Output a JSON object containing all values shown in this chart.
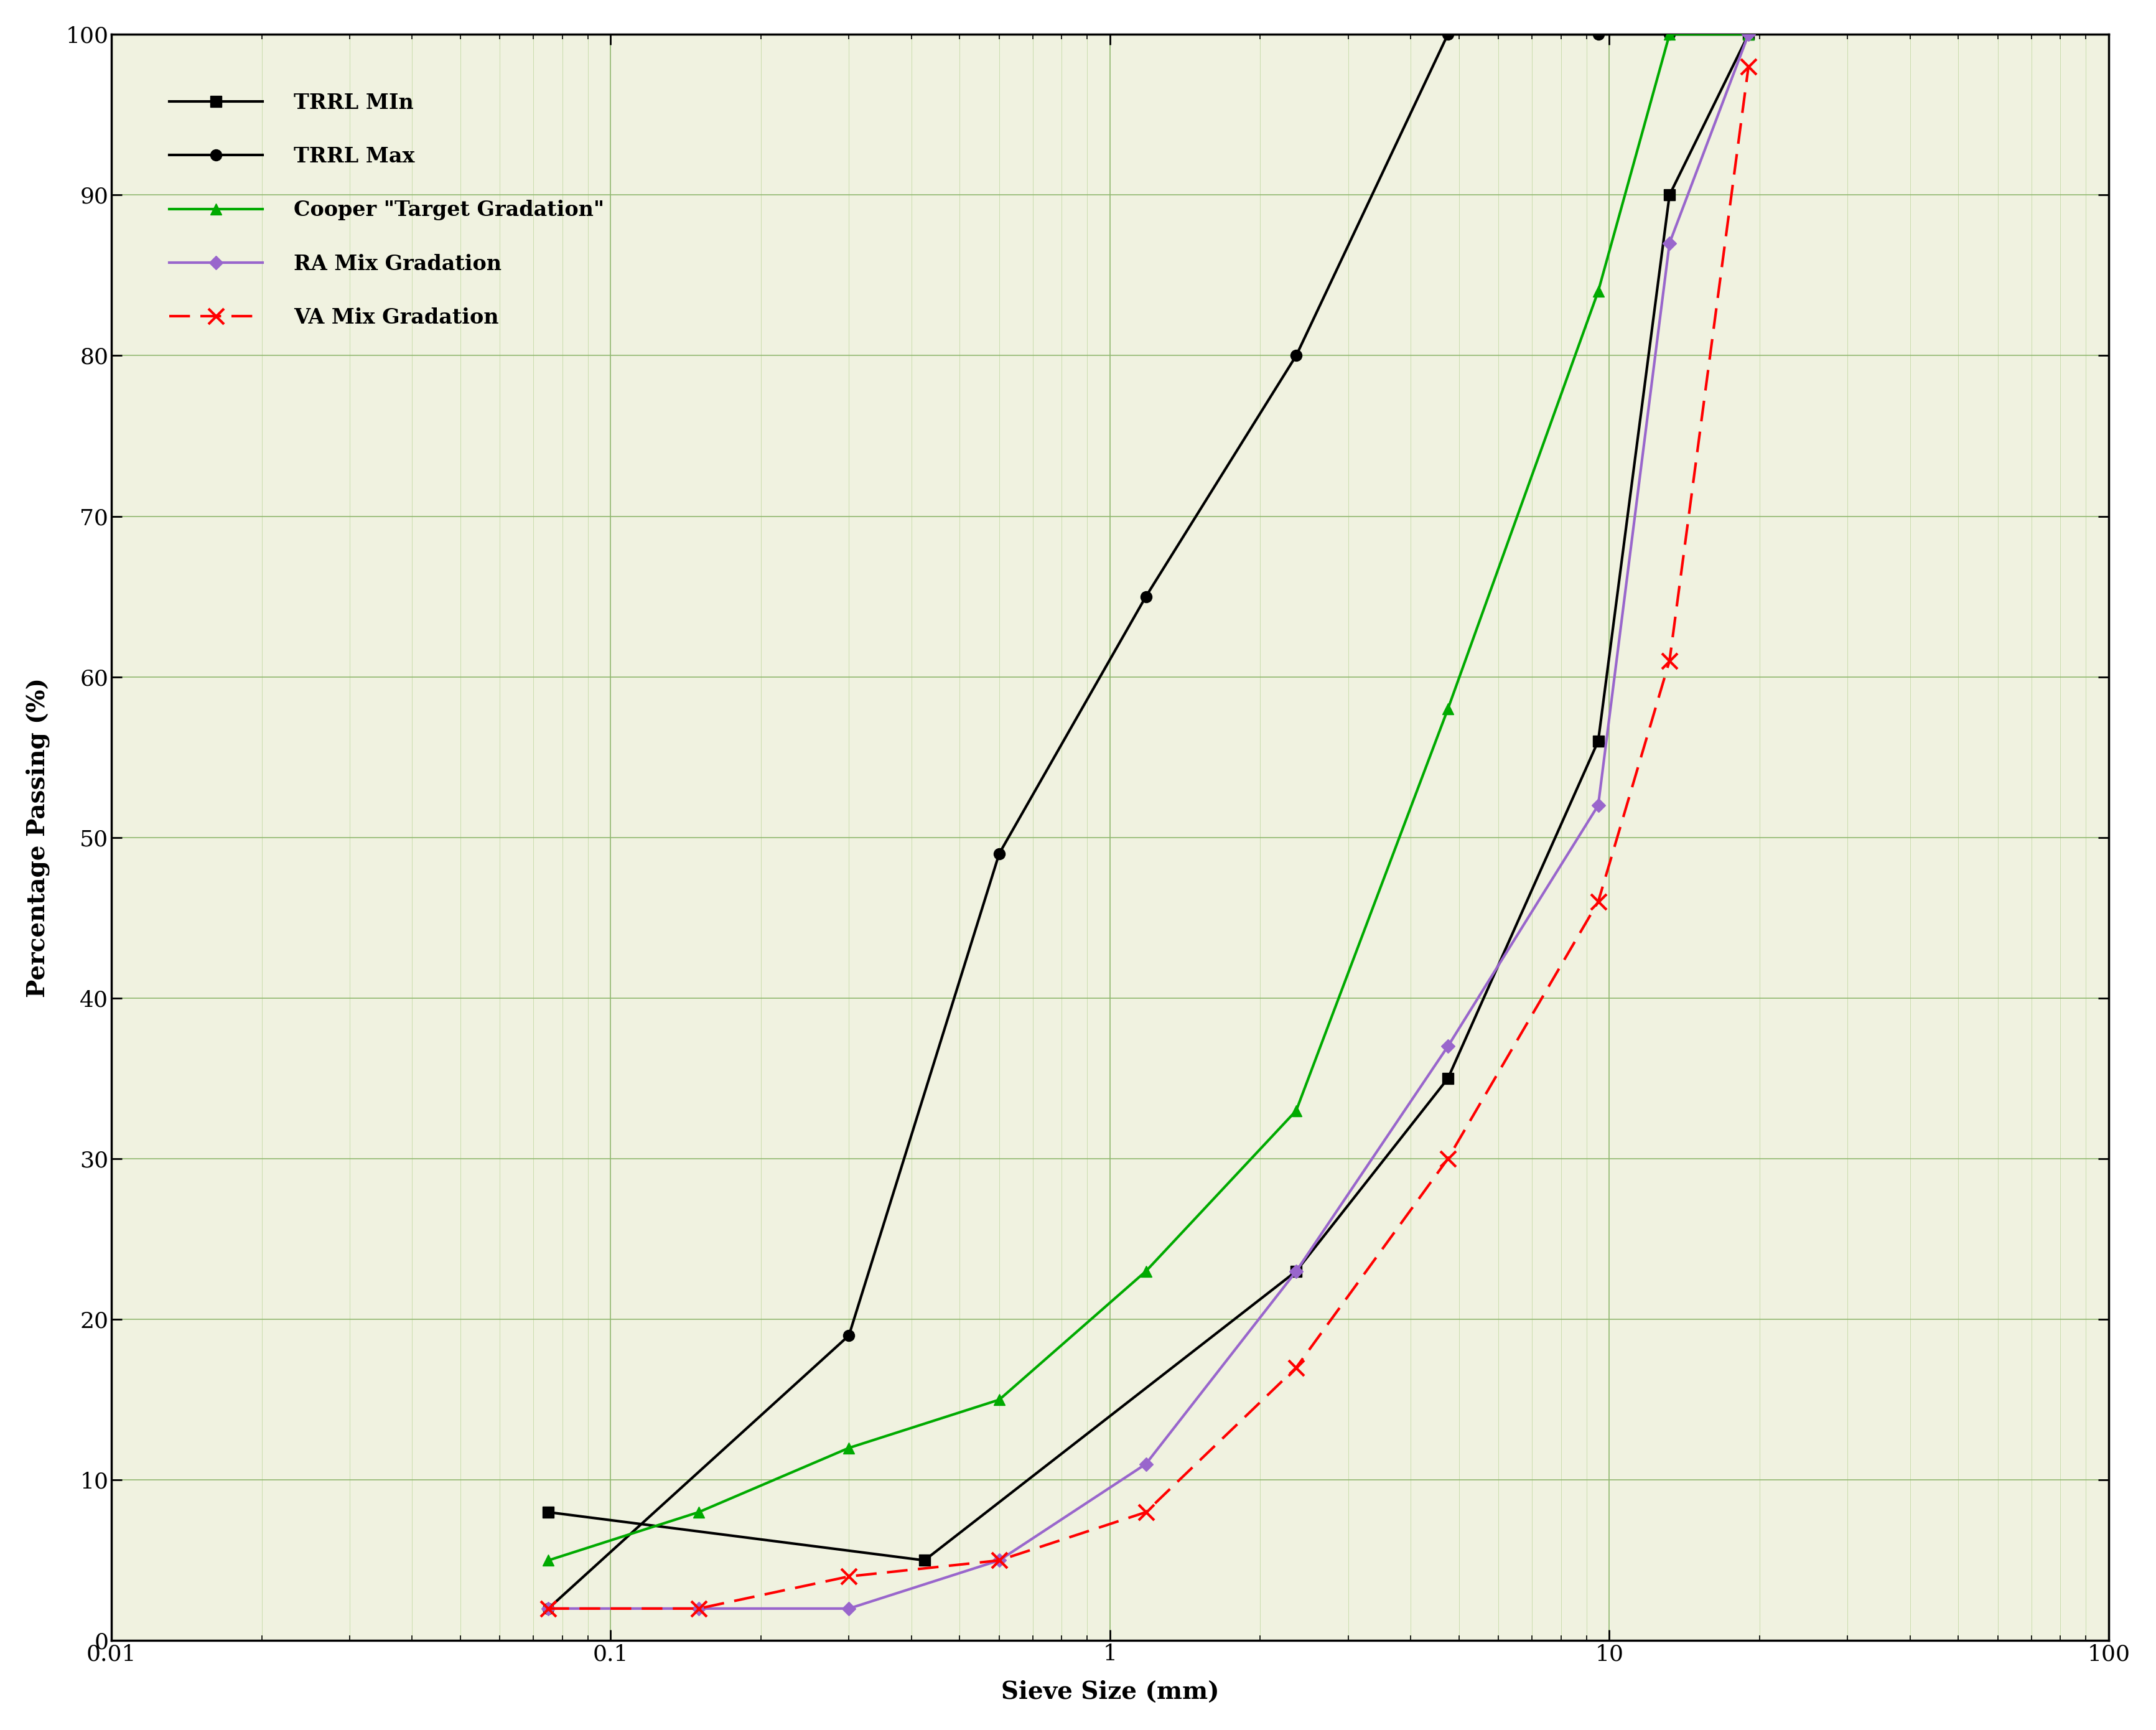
{
  "trrl_min_x": [
    0.075,
    0.425,
    2.36,
    4.75,
    9.5,
    13.2,
    19.0
  ],
  "trrl_min_y": [
    8,
    5,
    23,
    35,
    56,
    90,
    100
  ],
  "trrl_max_x": [
    0.075,
    0.3,
    0.6,
    1.18,
    2.36,
    4.75,
    9.5,
    13.2,
    19.0
  ],
  "trrl_max_y": [
    2,
    19,
    49,
    65,
    80,
    100,
    100,
    100,
    100
  ],
  "cooper_x": [
    0.075,
    0.15,
    0.3,
    0.6,
    1.18,
    2.36,
    4.75,
    9.5,
    13.2,
    19.0
  ],
  "cooper_y": [
    5,
    8,
    12,
    15,
    23,
    33,
    58,
    84,
    100,
    100
  ],
  "ra_mix_x": [
    0.075,
    0.15,
    0.3,
    0.6,
    1.18,
    2.36,
    4.75,
    9.5,
    13.2,
    19.0
  ],
  "ra_mix_y": [
    2,
    2,
    2,
    5,
    11,
    23,
    37,
    52,
    87,
    100
  ],
  "va_mix_x": [
    0.075,
    0.15,
    0.3,
    0.6,
    1.18,
    2.36,
    4.75,
    9.5,
    13.2,
    19.0
  ],
  "va_mix_y": [
    2,
    2,
    4,
    5,
    8,
    17,
    30,
    46,
    61,
    98
  ],
  "xlabel": "Sieve Size (mm)",
  "ylabel": "Percentage Passing (%)",
  "ylim_lo": 0,
  "ylim_hi": 100,
  "xlim_lo": 0.01,
  "xlim_hi": 100,
  "yticks": [
    0,
    10,
    20,
    30,
    40,
    50,
    60,
    70,
    80,
    90,
    100
  ],
  "xticks": [
    0.01,
    0.1,
    1,
    10,
    100
  ],
  "xtick_labels": [
    "0.01",
    "0.1",
    "1",
    "10",
    "100"
  ],
  "legend_labels": [
    "TRRL MIn",
    "TRRL Max",
    "Cooper \"Target Gradation\"",
    "RA Mix Gradation",
    "VA Mix Gradation"
  ],
  "bg_color": "#f0f2e0",
  "grid_major_color": "#90b870",
  "grid_minor_color": "#c0d8a0",
  "line_width": 3.0,
  "marker_size": 13,
  "label_fontsize": 28,
  "tick_fontsize": 26,
  "legend_fontsize": 24,
  "trrl_color": "#000000",
  "cooper_color": "#00aa00",
  "ra_color": "#9966cc",
  "va_color": "#ff0000"
}
